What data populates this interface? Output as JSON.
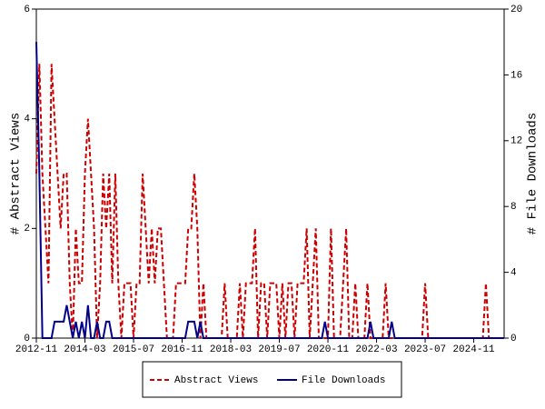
{
  "chart_data": {
    "type": "line",
    "categories": [
      "2012-11",
      null,
      null,
      null,
      null,
      null,
      null,
      null,
      null,
      null,
      null,
      null,
      null,
      null,
      null,
      null,
      "2014-03",
      null,
      null,
      null,
      null,
      null,
      null,
      null,
      null,
      null,
      null,
      null,
      null,
      null,
      null,
      null,
      "2015-07",
      null,
      null,
      null,
      null,
      null,
      null,
      null,
      null,
      null,
      null,
      null,
      null,
      null,
      null,
      null,
      "2016-11",
      null,
      null,
      null,
      null,
      null,
      null,
      null,
      null,
      null,
      null,
      null,
      null,
      null,
      null,
      null,
      "2018-03",
      null,
      null,
      null,
      null,
      null,
      null,
      null,
      null,
      null,
      null,
      null,
      null,
      null,
      null,
      null,
      "2019-07",
      null,
      null,
      null,
      null,
      null,
      null,
      null,
      null,
      null,
      null,
      null,
      null,
      null,
      null,
      null,
      "2020-11",
      null,
      null,
      null,
      null,
      null,
      null,
      null,
      null,
      null,
      null,
      null,
      null,
      null,
      null,
      null,
      "2022-03",
      null,
      null,
      null,
      null,
      null,
      null,
      null,
      null,
      null,
      null,
      null,
      null,
      null,
      null,
      null,
      "2023-07",
      null,
      null,
      null,
      null,
      null,
      null,
      null,
      null,
      null,
      null,
      null,
      null,
      null,
      null,
      null,
      "2024-11",
      null,
      null,
      null,
      null,
      null,
      null,
      null,
      null,
      null,
      null
    ],
    "ylabel": "# Abstract Views",
    "y2label": "# File Downloads",
    "ylim": [
      0,
      6
    ],
    "yticks": [
      0,
      2,
      4,
      6
    ],
    "y2lim": [
      0,
      20
    ],
    "y2ticks": [
      0,
      4,
      8,
      12,
      16,
      20
    ],
    "series": [
      {
        "name": "Abstract Views",
        "color": "#cc0000",
        "dashed": true,
        "values": [
          3,
          5,
          3,
          2,
          1,
          5,
          4,
          3,
          2,
          3,
          3,
          1,
          0,
          2,
          1,
          1,
          3,
          4,
          3,
          2,
          0,
          1,
          3,
          2,
          3,
          1,
          3,
          1,
          0,
          1,
          1,
          1,
          0,
          1,
          1,
          3,
          2,
          1,
          2,
          1,
          2,
          2,
          1,
          0,
          0,
          0,
          1,
          1,
          1,
          1,
          2,
          2,
          3,
          2,
          0,
          1,
          0,
          0,
          0,
          0,
          0,
          0,
          1,
          0,
          0,
          0,
          0,
          1,
          0,
          1,
          1,
          1,
          2,
          0,
          1,
          1,
          0,
          1,
          1,
          1,
          0,
          1,
          0,
          1,
          1,
          0,
          1,
          1,
          1,
          2,
          0,
          1,
          2,
          0,
          0,
          0,
          0,
          2,
          0,
          0,
          0,
          1,
          2,
          0,
          0,
          1,
          0,
          0,
          0,
          1,
          0,
          0,
          0,
          0,
          0,
          1,
          0,
          0,
          0,
          0,
          0,
          0,
          0,
          0,
          0,
          0,
          0,
          0,
          1,
          0,
          0,
          0,
          0,
          0,
          0,
          0,
          0,
          0,
          0,
          0,
          0,
          0,
          0,
          0,
          0,
          0,
          0,
          0,
          1,
          0,
          0,
          0,
          0,
          0,
          0
        ]
      },
      {
        "name": "File Downloads",
        "color": "#00008b",
        "axis": "y2",
        "values": [
          18,
          10,
          0,
          0,
          0,
          0,
          1,
          1,
          1,
          1,
          2,
          1,
          0,
          1,
          0,
          1,
          0,
          2,
          0,
          0,
          1,
          0,
          0,
          1,
          1,
          0,
          0,
          0,
          0,
          0,
          0,
          0,
          0,
          0,
          0,
          0,
          0,
          0,
          0,
          0,
          0,
          0,
          0,
          0,
          0,
          0,
          0,
          0,
          0,
          0,
          1,
          1,
          1,
          0,
          1,
          0,
          0,
          0,
          0,
          0,
          0,
          0,
          0,
          0,
          0,
          0,
          0,
          0,
          0,
          0,
          0,
          0,
          0,
          0,
          0,
          0,
          0,
          0,
          0,
          0,
          0,
          0,
          0,
          0,
          0,
          0,
          0,
          0,
          0,
          0,
          0,
          0,
          0,
          0,
          0,
          1,
          0,
          0,
          0,
          0,
          0,
          0,
          0,
          0,
          0,
          0,
          0,
          0,
          0,
          0,
          1,
          0,
          0,
          0,
          0,
          0,
          0,
          1,
          0,
          0,
          0,
          0,
          0,
          0,
          0,
          0,
          0,
          0,
          0,
          0,
          0,
          0,
          0,
          0,
          0,
          0,
          0,
          0,
          0,
          0,
          0,
          0,
          0,
          0,
          0,
          0,
          0,
          0,
          0,
          0,
          0,
          0,
          0,
          0,
          0
        ]
      }
    ]
  }
}
